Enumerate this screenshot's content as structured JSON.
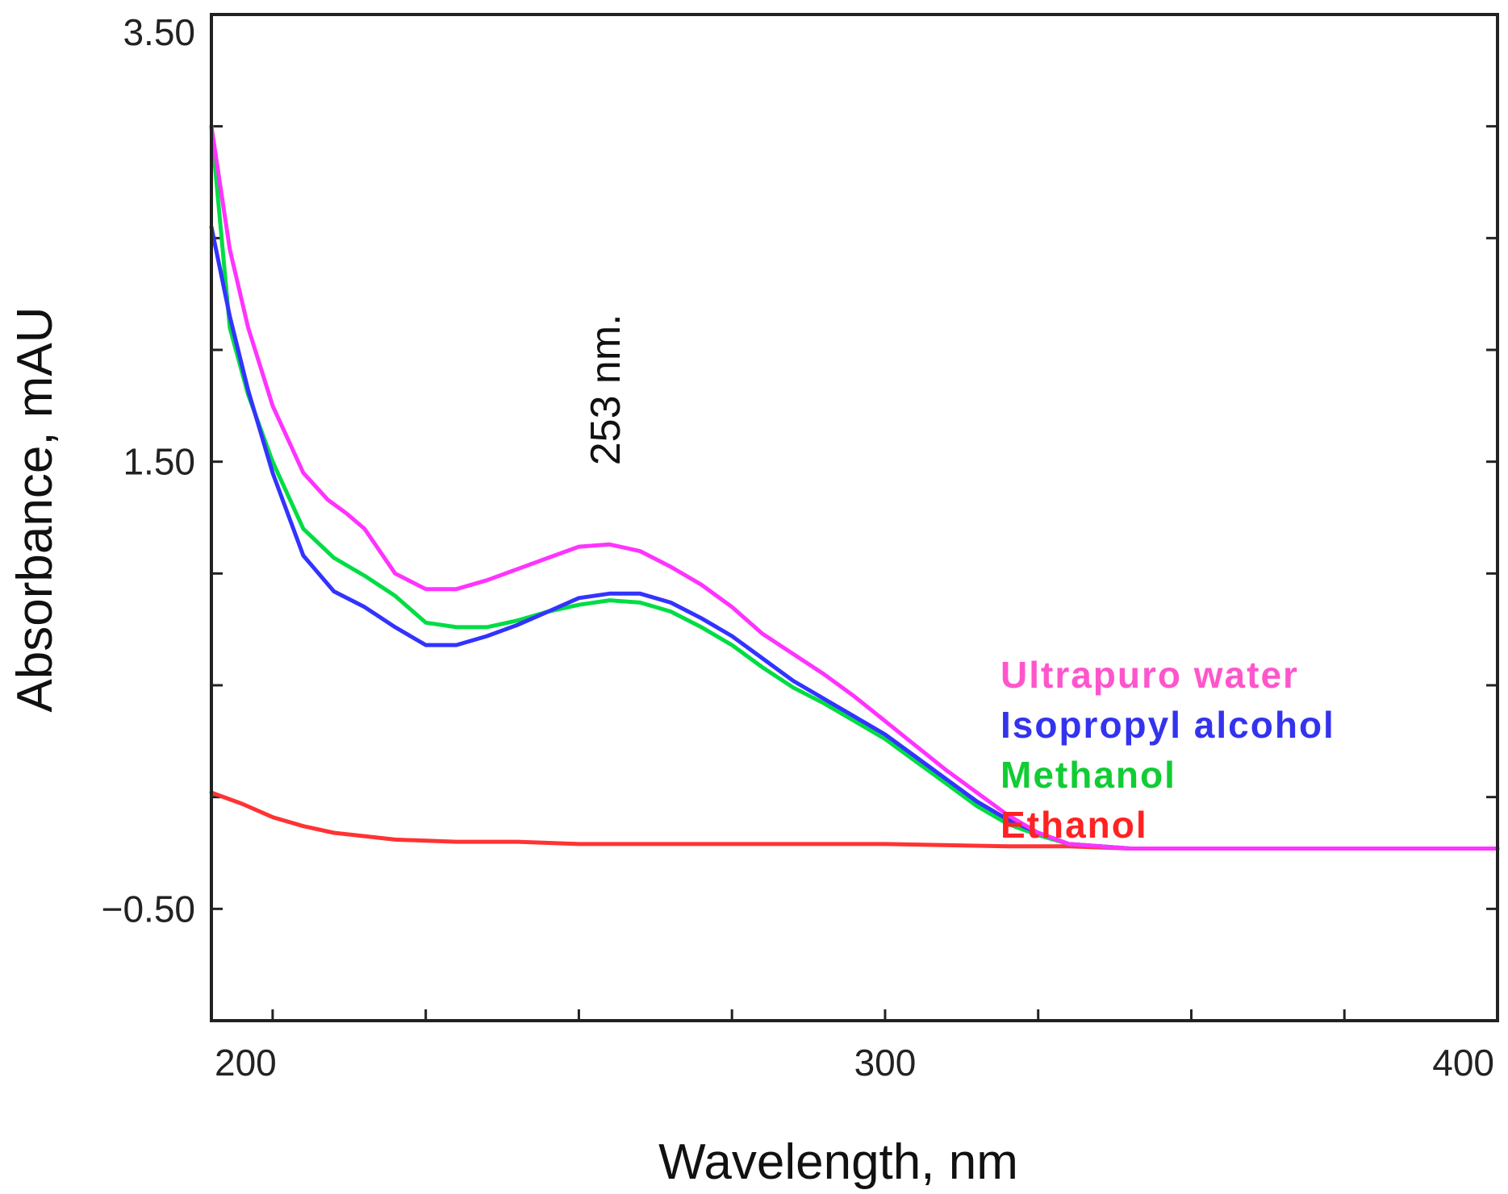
{
  "chart_data": {
    "type": "line",
    "title": "",
    "xlabel": "Wavelength, nm",
    "ylabel": "Absorbance, mAU",
    "xlim": [
      190,
      400
    ],
    "ylim": [
      -1.0,
      3.5
    ],
    "x_ticks": [
      {
        "value": 200,
        "label": "200"
      },
      {
        "value": 300,
        "label": "300"
      },
      {
        "value": 400,
        "label": "400"
      }
    ],
    "y_ticks": [
      {
        "value": 3.5,
        "label": "3.50"
      },
      {
        "value": 1.5,
        "label": "1.50"
      },
      {
        "value": -0.5,
        "label": "−0.50"
      }
    ],
    "annotations": [
      {
        "text": "253 nm.",
        "x": 253,
        "y": 1.75,
        "rotation": "vertical"
      }
    ],
    "legend_position": "right",
    "series": [
      {
        "name": "Ultrapuro water",
        "color": "#ff33ff",
        "x": [
          190,
          193,
          196,
          200,
          205,
          209,
          212,
          215,
          220,
          225,
          230,
          235,
          240,
          245,
          250,
          255,
          260,
          265,
          270,
          275,
          280,
          285,
          290,
          295,
          300,
          305,
          310,
          315,
          320,
          325,
          330,
          340,
          360,
          380,
          400
        ],
        "y": [
          3.0,
          2.45,
          2.1,
          1.75,
          1.45,
          1.33,
          1.27,
          1.2,
          1.0,
          0.93,
          0.93,
          0.97,
          1.02,
          1.07,
          1.12,
          1.13,
          1.1,
          1.03,
          0.95,
          0.85,
          0.73,
          0.64,
          0.55,
          0.45,
          0.34,
          0.23,
          0.12,
          0.02,
          -0.08,
          -0.16,
          -0.21,
          -0.23,
          -0.23,
          -0.23,
          -0.23
        ]
      },
      {
        "name": "Isopropyl alcohol",
        "color": "#3333ff",
        "x": [
          190,
          193,
          196,
          200,
          205,
          210,
          215,
          220,
          225,
          230,
          235,
          240,
          245,
          250,
          255,
          260,
          265,
          270,
          275,
          280,
          285,
          290,
          295,
          300,
          305,
          310,
          315,
          320,
          325,
          330,
          340,
          360,
          380,
          400
        ],
        "y": [
          2.55,
          2.15,
          1.82,
          1.45,
          1.08,
          0.92,
          0.85,
          0.76,
          0.68,
          0.68,
          0.72,
          0.77,
          0.83,
          0.89,
          0.91,
          0.91,
          0.87,
          0.8,
          0.72,
          0.62,
          0.52,
          0.44,
          0.36,
          0.28,
          0.18,
          0.08,
          -0.02,
          -0.1,
          -0.16,
          -0.21,
          -0.23,
          -0.23,
          -0.23,
          -0.23
        ]
      },
      {
        "name": "Methanol",
        "color": "#00dd44",
        "x": [
          190,
          193,
          196,
          200,
          205,
          210,
          215,
          220,
          225,
          230,
          235,
          240,
          245,
          250,
          255,
          260,
          265,
          270,
          275,
          280,
          285,
          290,
          295,
          300,
          305,
          310,
          315,
          320,
          325,
          330,
          340,
          360,
          380,
          400
        ],
        "y": [
          3.0,
          2.1,
          1.8,
          1.5,
          1.2,
          1.07,
          0.99,
          0.9,
          0.78,
          0.76,
          0.76,
          0.79,
          0.83,
          0.86,
          0.88,
          0.87,
          0.83,
          0.76,
          0.68,
          0.58,
          0.49,
          0.42,
          0.34,
          0.26,
          0.16,
          0.06,
          -0.04,
          -0.12,
          -0.17,
          -0.21,
          -0.23,
          -0.23,
          -0.23,
          -0.23
        ]
      },
      {
        "name": "Ethanol",
        "color": "#ff3333",
        "x": [
          190,
          195,
          200,
          205,
          210,
          220,
          230,
          240,
          250,
          260,
          280,
          300,
          320,
          330,
          340,
          360,
          380,
          400
        ],
        "y": [
          0.02,
          -0.03,
          -0.09,
          -0.13,
          -0.16,
          -0.19,
          -0.2,
          -0.2,
          -0.21,
          -0.21,
          -0.21,
          -0.21,
          -0.22,
          -0.22,
          -0.23,
          -0.23,
          -0.23,
          -0.23
        ]
      }
    ]
  }
}
